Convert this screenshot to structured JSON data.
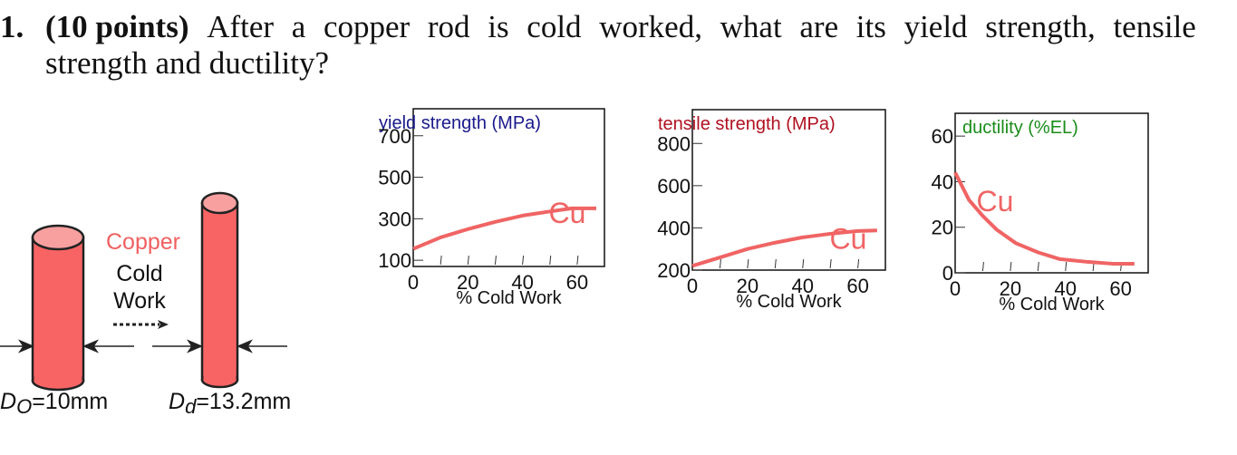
{
  "question": {
    "number": "1.",
    "points": "(10 points)",
    "line1_words": [
      "After",
      "a",
      "copper",
      "rod",
      "is",
      "cold",
      "worked,",
      "what",
      "are",
      "its",
      "yield",
      "strength,",
      "tensile"
    ],
    "line2": "strength and ductility?"
  },
  "diagram": {
    "material_label": "Copper",
    "process_label_1": "Cold",
    "process_label_2": "Work",
    "d0_label": "D",
    "d0_sub": "O",
    "d0_value": "=10mm",
    "dd_label": "D",
    "dd_sub": "d",
    "dd_value": "=13.2mm",
    "colors": {
      "rod": "#f86464",
      "rod_top": "#f8a0a0",
      "copper_text": "#f06060"
    }
  },
  "chart_data": [
    {
      "type": "line",
      "title": "yield strength (MPa)",
      "title_color": "#1a1a8c",
      "xlabel": "% Cold Work",
      "ylabel": "yield strength (MPa)",
      "x_ticks": [
        "0",
        "20",
        "40",
        "60"
      ],
      "y_ticks": [
        "100",
        "300",
        "500",
        "700"
      ],
      "xlim": [
        0,
        70
      ],
      "ylim": [
        70,
        830
      ],
      "series": [
        {
          "name": "Cu",
          "color": "#f06464",
          "x": [
            0,
            10,
            20,
            30,
            40,
            50,
            58,
            67
          ],
          "values": [
            155,
            210,
            250,
            285,
            315,
            335,
            350,
            350
          ]
        }
      ]
    },
    {
      "type": "line",
      "title": "tensile strength (MPa)",
      "title_color": "#b01020",
      "xlabel": "% Cold Work",
      "ylabel": "tensile strength (MPa)",
      "x_ticks": [
        "0",
        "20",
        "40",
        "60"
      ],
      "y_ticks": [
        "200",
        "400",
        "600",
        "800"
      ],
      "xlim": [
        0,
        70
      ],
      "ylim": [
        200,
        960
      ],
      "series": [
        {
          "name": "Cu",
          "color": "#f06464",
          "x": [
            0,
            10,
            20,
            30,
            40,
            50,
            60,
            67
          ],
          "values": [
            220,
            260,
            300,
            330,
            355,
            372,
            385,
            388
          ]
        }
      ]
    },
    {
      "type": "line",
      "title": "ductility (%EL)",
      "title_color": "#1a8c1a",
      "xlabel": "% Cold Work",
      "ylabel": "ductility (%EL)",
      "x_ticks": [
        "0",
        "20",
        "40",
        "60"
      ],
      "y_ticks": [
        "0",
        "20",
        "40",
        "60"
      ],
      "xlim": [
        0,
        70
      ],
      "ylim": [
        0,
        70
      ],
      "series": [
        {
          "name": "Cu",
          "color": "#f06464",
          "x": [
            0,
            5,
            10,
            15,
            22,
            30,
            38,
            48,
            57,
            65
          ],
          "values": [
            44,
            32,
            25,
            19,
            13,
            9,
            6,
            4.8,
            4,
            4
          ]
        }
      ]
    }
  ]
}
